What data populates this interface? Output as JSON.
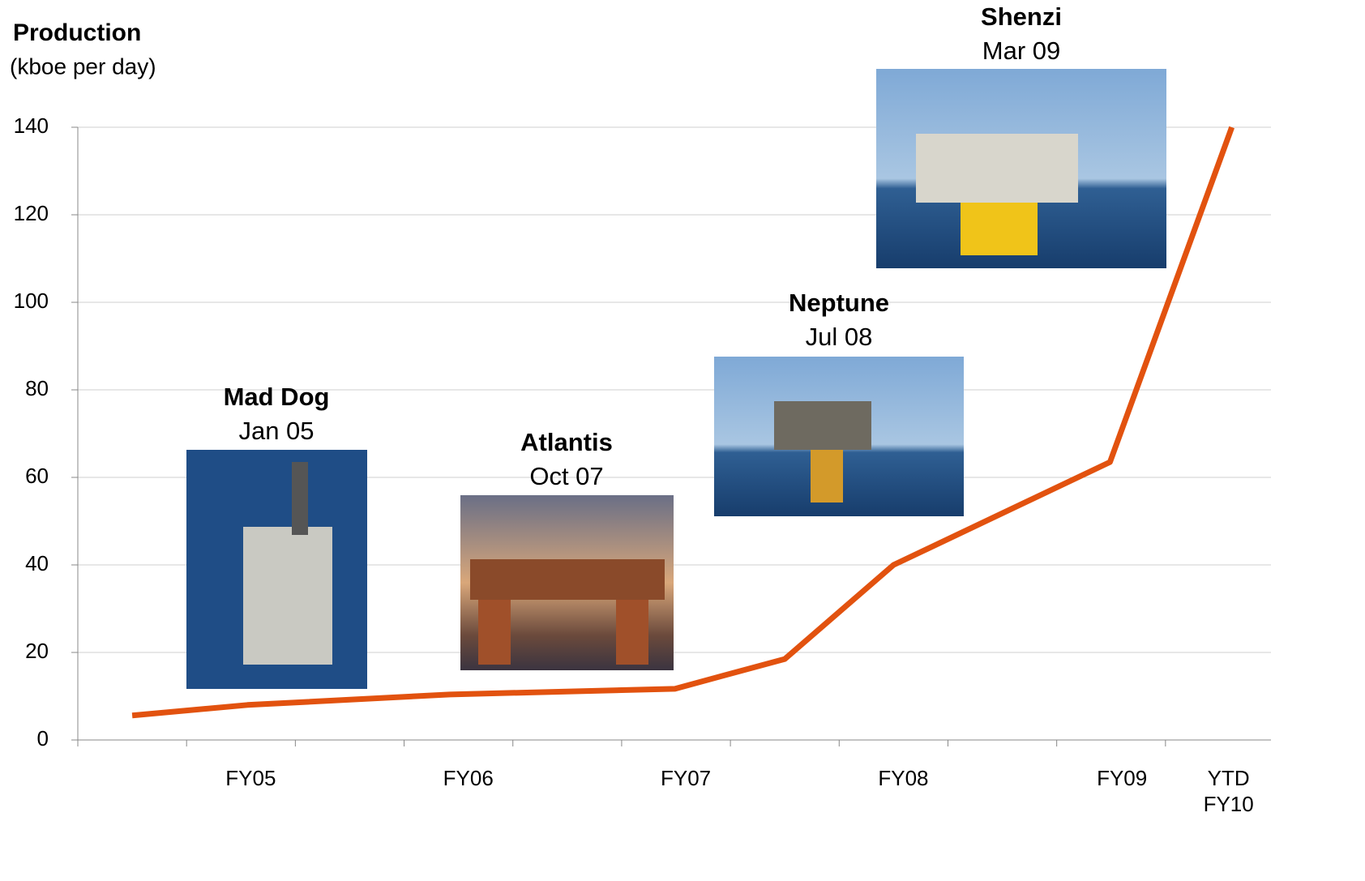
{
  "chart_data": {
    "type": "line",
    "y_label": "Production",
    "y_unit": "(kboe per day)",
    "x": [
      0.5,
      1.56,
      3.42,
      5.49,
      6.5,
      7.5,
      9.49,
      10.61
    ],
    "series": [
      {
        "name": "Production",
        "color": "#e2520f",
        "values": [
          5.6,
          8,
          10.4,
          11.7,
          18.5,
          40,
          63.5,
          140
        ]
      }
    ],
    "xlim": [
      0,
      10.97
    ],
    "xticks": [
      {
        "value": 1.59,
        "label": "FY05"
      },
      {
        "value": 3.59,
        "label": "FY06"
      },
      {
        "value": 5.59,
        "label": "FY07"
      },
      {
        "value": 7.59,
        "label": "FY08"
      },
      {
        "value": 9.6,
        "label": "FY09"
      },
      {
        "value": 10.58,
        "label": "YTD FY10"
      }
    ],
    "x_tick_marks": [
      0,
      1,
      2,
      3,
      4,
      5,
      6,
      7,
      8,
      9,
      10
    ],
    "ylim": [
      0,
      140
    ],
    "yticks": [
      0,
      20,
      40,
      60,
      80,
      100,
      120,
      140
    ],
    "grid": true,
    "annotations": [
      {
        "title": "Mad Dog",
        "date": "Jan 05"
      },
      {
        "title": "Atlantis",
        "date": "Oct 07"
      },
      {
        "title": "Neptune",
        "date": "Jul 08"
      },
      {
        "title": "Shenzi",
        "date": "Mar 09"
      }
    ]
  }
}
